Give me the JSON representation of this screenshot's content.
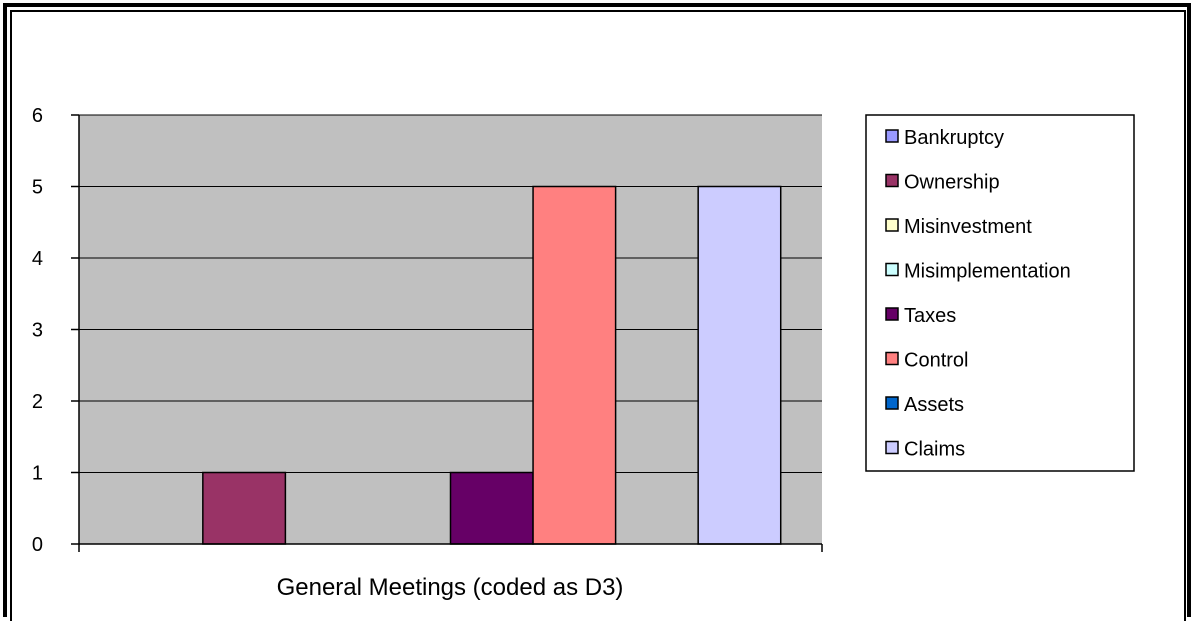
{
  "chart_data": {
    "type": "bar",
    "categories": [
      "General Meetings (coded as D3)"
    ],
    "series": [
      {
        "name": "Bankruptcy",
        "values": [
          0
        ],
        "color": "#9999FF"
      },
      {
        "name": "Ownership",
        "values": [
          1
        ],
        "color": "#993366"
      },
      {
        "name": "Misinvestment",
        "values": [
          0
        ],
        "color": "#FFFFCC"
      },
      {
        "name": "Misimplementation",
        "values": [
          0
        ],
        "color": "#CCFFFF"
      },
      {
        "name": "Taxes",
        "values": [
          1
        ],
        "color": "#660066"
      },
      {
        "name": "Control",
        "values": [
          5
        ],
        "color": "#FF8080"
      },
      {
        "name": "Assets",
        "values": [
          0
        ],
        "color": "#0066CC"
      },
      {
        "name": "Claims",
        "values": [
          5
        ],
        "color": "#CCCCFF"
      }
    ],
    "ylim": [
      0,
      6
    ],
    "yticks": [
      "0",
      "1",
      "2",
      "3",
      "4",
      "5",
      "6"
    ],
    "grid": true,
    "plot_background": "#C0C0C0",
    "legend_position": "right"
  }
}
